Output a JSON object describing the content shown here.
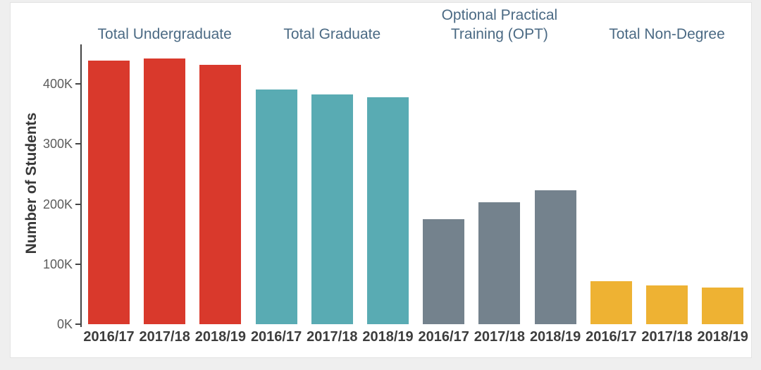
{
  "page": {
    "background_color": "#efefef",
    "card_background_color": "#ffffff"
  },
  "chart_data": {
    "type": "bar",
    "title": "",
    "xlabel": "",
    "ylabel": "Number of Students",
    "grid": false,
    "legend": false,
    "value_unit": "thousands of students",
    "ylim_thousands": [
      0,
      465
    ],
    "y_axis": {
      "ticks": [
        {
          "label": "0K",
          "value_thousands": 0
        },
        {
          "label": "100K",
          "value_thousands": 100
        },
        {
          "label": "200K",
          "value_thousands": 200
        },
        {
          "label": "300K",
          "value_thousands": 300
        },
        {
          "label": "400K",
          "value_thousands": 400
        }
      ]
    },
    "categories": [
      "2016/17",
      "2017/18",
      "2018/19"
    ],
    "groups": [
      {
        "label": "Total Undergraduate",
        "color": "#d9392c",
        "categories": [
          "2016/17",
          "2017/18",
          "2018/19"
        ],
        "values_thousands": [
          439,
          442,
          432
        ]
      },
      {
        "label": "Total Graduate",
        "color": "#59abb3",
        "categories": [
          "2016/17",
          "2017/18",
          "2018/19"
        ],
        "values_thousands": [
          391,
          383,
          378
        ]
      },
      {
        "label": "Optional Practical\nTraining (OPT)",
        "color": "#74828d",
        "categories": [
          "2016/17",
          "2017/18",
          "2018/19"
        ],
        "values_thousands": [
          175,
          203,
          223
        ]
      },
      {
        "label": "Total Non-Degree",
        "color": "#eeb233",
        "categories": [
          "2016/17",
          "2017/18",
          "2018/19"
        ],
        "values_thousands": [
          72,
          65,
          61
        ]
      }
    ],
    "axis_colors": {
      "axis_line": "#444444",
      "y_tick_label": "#5c5c5c",
      "x_tick_label": "#3d3d3d",
      "y_axis_title": "#383838",
      "group_title": "#4b6a84"
    }
  }
}
